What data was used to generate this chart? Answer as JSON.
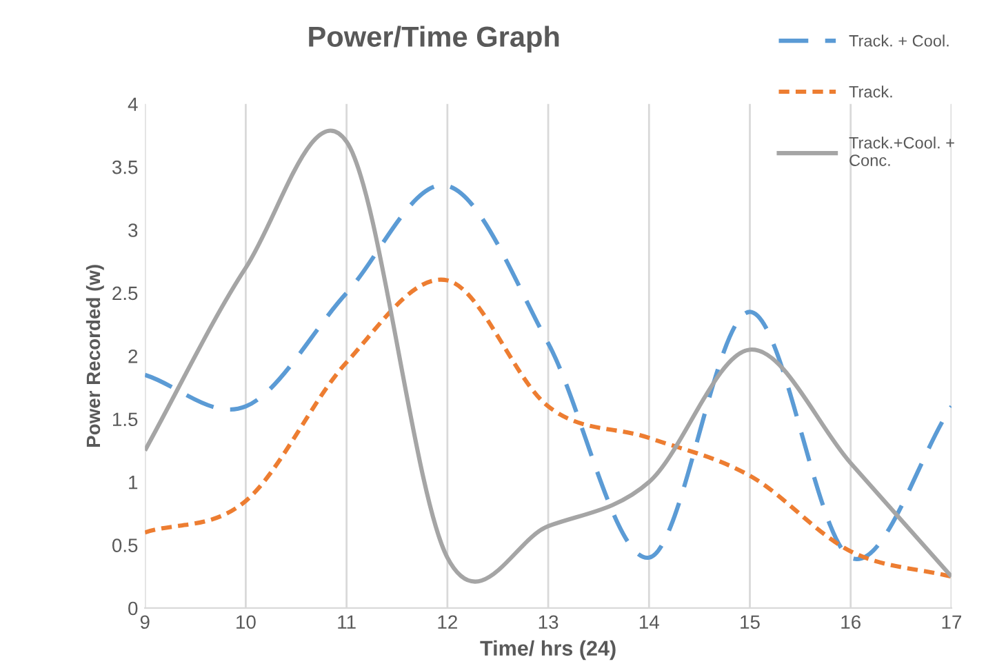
{
  "chart_data": {
    "type": "line",
    "title": "Power/Time Graph",
    "xlabel": "Time/ hrs (24)",
    "ylabel": "Power Recorded (w)",
    "x": [
      9,
      10,
      11,
      12,
      13,
      14,
      15,
      16,
      17
    ],
    "series": [
      {
        "name": "Track. + Cool.",
        "color": "#5b9bd5",
        "line_style": "dashed",
        "values": [
          1.85,
          1.6,
          2.5,
          3.35,
          2.1,
          0.4,
          2.35,
          0.4,
          1.6
        ]
      },
      {
        "name": "Track.",
        "color": "#ed7d31",
        "line_style": "dotted",
        "values": [
          0.6,
          0.85,
          1.95,
          2.6,
          1.6,
          1.35,
          1.05,
          0.45,
          0.25
        ]
      },
      {
        "name": "Track.+Cool. + Conc.",
        "color": "#a5a5a5",
        "line_style": "solid",
        "values": [
          1.25,
          2.7,
          3.7,
          0.4,
          0.65,
          1.0,
          2.05,
          1.15,
          0.25
        ]
      }
    ],
    "xlim": [
      9,
      17
    ],
    "xticks": [
      9,
      10,
      11,
      12,
      13,
      14,
      15,
      16,
      17
    ],
    "ylim": [
      0,
      4
    ],
    "yticks": [
      0,
      0.5,
      1,
      1.5,
      2,
      2.5,
      3,
      3.5,
      4
    ],
    "grid": "x",
    "legend": "right",
    "marker": "none"
  }
}
